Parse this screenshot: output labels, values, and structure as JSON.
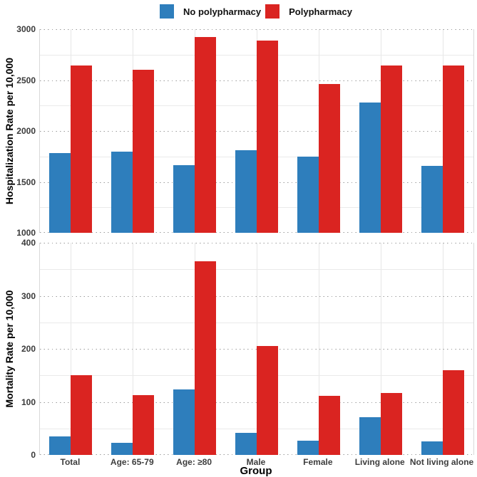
{
  "legend": {
    "items": [
      {
        "label": "No polypharmacy",
        "color": "#2e7ebc"
      },
      {
        "label": "Polypharmacy",
        "color": "#da2421"
      }
    ]
  },
  "x_axis_title": "Group",
  "chart_data": [
    {
      "type": "bar",
      "panel": "hospitalization",
      "ylabel": "Hospitalization Rate per 10,000",
      "categories": [
        "Total",
        "Age: 65-79",
        "Age: ≥80",
        "Male",
        "Female",
        "Living alone",
        "Not living alone"
      ],
      "series": [
        {
          "name": "No polypharmacy",
          "color": "#2e7ebc",
          "values": [
            1780,
            1800,
            1665,
            1810,
            1750,
            2283,
            1655
          ]
        },
        {
          "name": "Polypharmacy",
          "color": "#da2421",
          "values": [
            2645,
            2600,
            2920,
            2885,
            2465,
            2645,
            2645
          ]
        }
      ],
      "ylim": [
        1000,
        3000
      ],
      "yticks": [
        1000,
        1500,
        2000,
        2500,
        3000
      ],
      "grid": "dotted major horizontal, light solid minor horizontal, light vertical at group centers",
      "legend_position": "top-center (shared)"
    },
    {
      "type": "bar",
      "panel": "mortality",
      "ylabel": "Mortality Rate per 10,000",
      "categories": [
        "Total",
        "Age: 65-79",
        "Age: ≥80",
        "Male",
        "Female",
        "Living alone",
        "Not living alone"
      ],
      "series": [
        {
          "name": "No polypharmacy",
          "color": "#2e7ebc",
          "values": [
            35,
            23,
            123,
            41,
            27,
            71,
            25
          ]
        },
        {
          "name": "Polypharmacy",
          "color": "#da2421",
          "values": [
            150,
            113,
            365,
            205,
            111,
            117,
            160
          ]
        }
      ],
      "ylim": [
        0,
        400
      ],
      "yticks": [
        0,
        100,
        200,
        300,
        400
      ],
      "grid": "dotted major horizontal, light solid minor horizontal, light vertical at group centers",
      "xlabel": "Group"
    }
  ]
}
